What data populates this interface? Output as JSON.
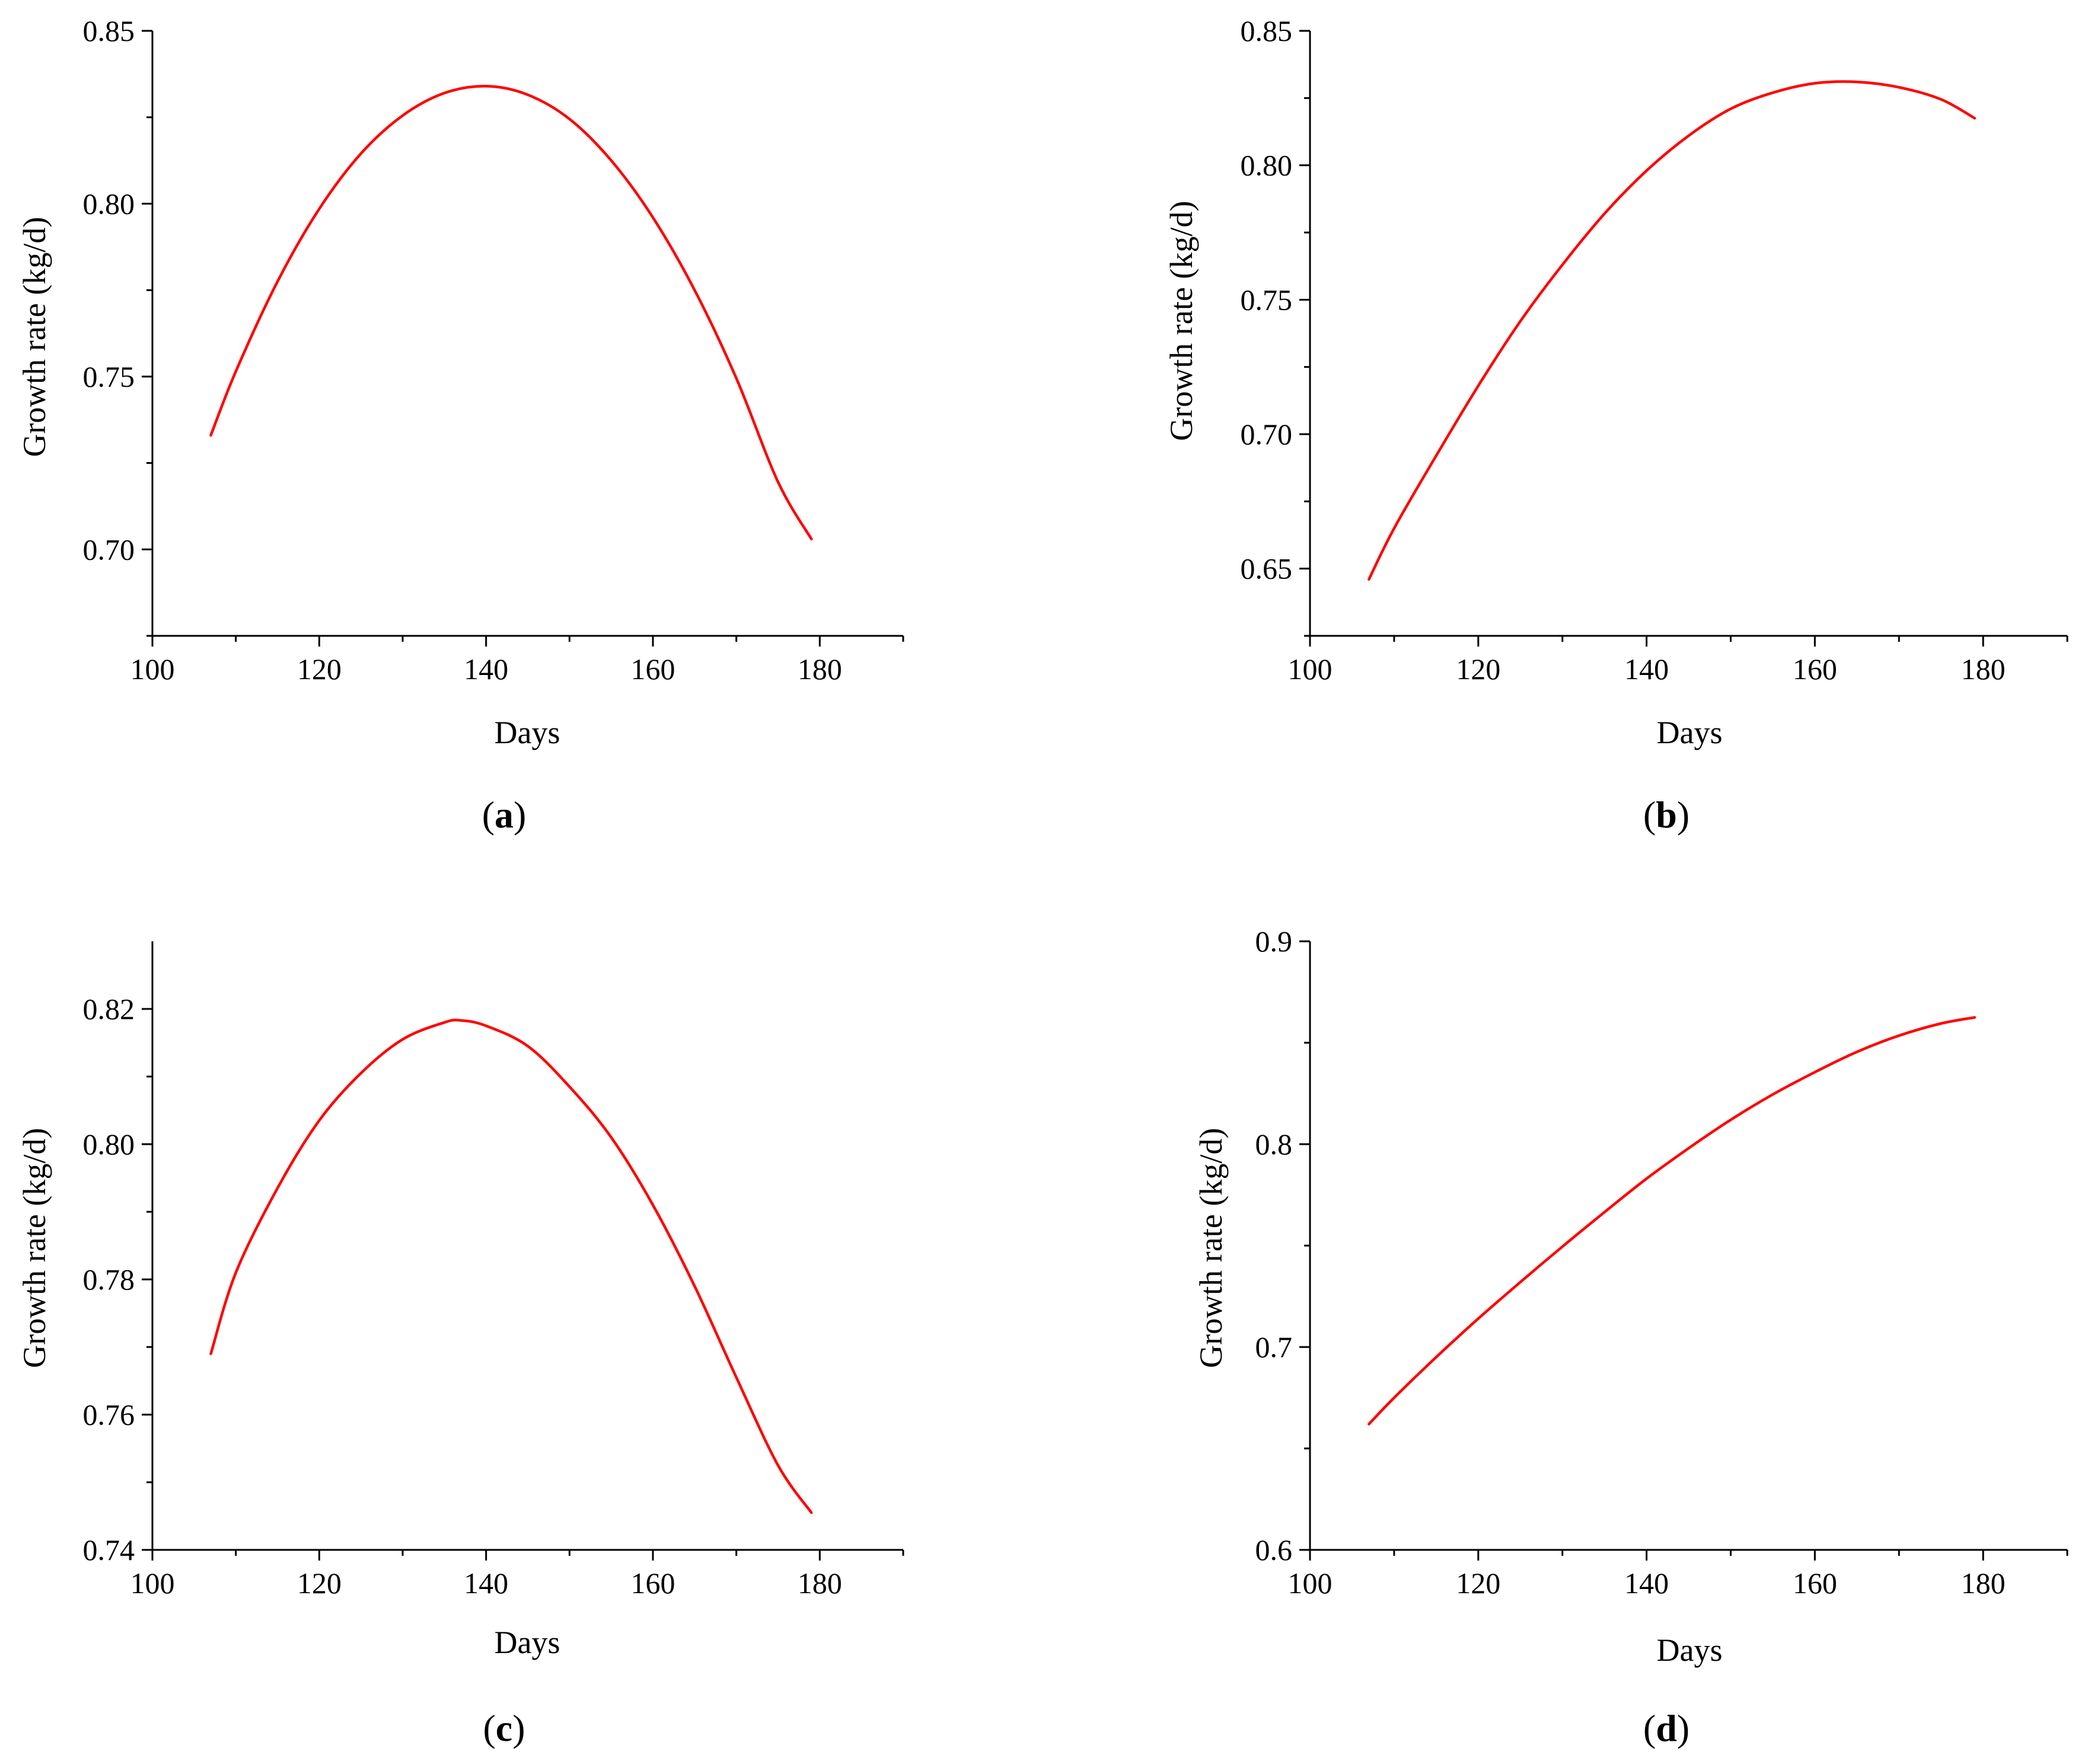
{
  "figure": {
    "line_color": "#ff0000"
  },
  "chart_data": [
    {
      "panel_label": "a",
      "type": "line",
      "xlabel": "Days",
      "ylabel": "Growth rate (kg/d)",
      "xlim": [
        100,
        190
      ],
      "ylim": [
        0.675,
        0.85
      ],
      "xticks": [
        100,
        120,
        140,
        160,
        180
      ],
      "xtick_labels": [
        "100",
        "120",
        "140",
        "160",
        "180"
      ],
      "yticks": [
        0.7,
        0.75,
        0.8,
        0.85
      ],
      "ytick_labels": [
        "0.70",
        "0.75",
        "0.80",
        "0.85"
      ],
      "grid": false,
      "series": [
        {
          "color": "#ff0000",
          "x": [
            107,
            110,
            115,
            120,
            125,
            130,
            135,
            140,
            145,
            150,
            155,
            160,
            165,
            170,
            175,
            179
          ],
          "y": [
            0.733,
            0.7515,
            0.7775,
            0.7985,
            0.8145,
            0.8255,
            0.832,
            0.834,
            0.8315,
            0.8245,
            0.8125,
            0.796,
            0.775,
            0.7495,
            0.7195,
            0.703
          ]
        }
      ]
    },
    {
      "panel_label": "b",
      "type": "line",
      "xlabel": "Days",
      "ylabel": "Growth rate (kg/d)",
      "xlim": [
        100,
        190
      ],
      "ylim": [
        0.625,
        0.85
      ],
      "xticks": [
        100,
        120,
        140,
        160,
        180
      ],
      "xtick_labels": [
        "100",
        "120",
        "140",
        "160",
        "180"
      ],
      "yticks": [
        0.65,
        0.7,
        0.75,
        0.8,
        0.85
      ],
      "ytick_labels": [
        "0.65",
        "0.70",
        "0.75",
        "0.80",
        "0.85"
      ],
      "grid": false,
      "series": [
        {
          "color": "#ff0000",
          "x": [
            107,
            110,
            115,
            120,
            125,
            130,
            135,
            140,
            145,
            150,
            155,
            160,
            165,
            170,
            175,
            179
          ],
          "y": [
            0.646,
            0.665,
            0.692,
            0.718,
            0.742,
            0.763,
            0.782,
            0.798,
            0.811,
            0.821,
            0.827,
            0.8305,
            0.831,
            0.829,
            0.8245,
            0.8175
          ]
        }
      ]
    },
    {
      "panel_label": "c",
      "type": "line",
      "xlabel": "Days",
      "ylabel": "Growth rate (kg/d)",
      "xlim": [
        100,
        190
      ],
      "ylim": [
        0.74,
        0.83
      ],
      "xticks": [
        100,
        120,
        140,
        160,
        180
      ],
      "xtick_labels": [
        "100",
        "120",
        "140",
        "160",
        "180"
      ],
      "yticks": [
        0.74,
        0.76,
        0.78,
        0.8,
        0.82
      ],
      "ytick_labels": [
        "0.74",
        "0.76",
        "0.78",
        "0.80",
        "0.82"
      ],
      "grid": false,
      "series": [
        {
          "color": "#ff0000",
          "x": [
            107,
            110,
            115,
            120,
            125,
            130,
            135,
            137,
            140,
            145,
            150,
            155,
            160,
            165,
            170,
            175,
            179
          ],
          "y": [
            0.769,
            0.781,
            0.7935,
            0.8035,
            0.8105,
            0.8155,
            0.818,
            0.8183,
            0.8175,
            0.8145,
            0.8085,
            0.801,
            0.791,
            0.779,
            0.7655,
            0.7525,
            0.7455
          ]
        }
      ]
    },
    {
      "panel_label": "d",
      "type": "line",
      "xlabel": "Days",
      "ylabel": "Growth rate (kg/d)",
      "xlim": [
        100,
        190
      ],
      "ylim": [
        0.6,
        0.9
      ],
      "xticks": [
        100,
        120,
        140,
        160,
        180
      ],
      "xtick_labels": [
        "100",
        "120",
        "140",
        "160",
        "180"
      ],
      "yticks": [
        0.6,
        0.7,
        0.8,
        0.9
      ],
      "ytick_labels": [
        "0.6",
        "0.7",
        "0.8",
        "0.9"
      ],
      "grid": false,
      "series": [
        {
          "color": "#ff0000",
          "x": [
            107,
            110,
            115,
            120,
            125,
            130,
            135,
            140,
            145,
            150,
            155,
            160,
            165,
            170,
            175,
            179
          ],
          "y": [
            0.662,
            0.675,
            0.695,
            0.714,
            0.732,
            0.7495,
            0.7665,
            0.783,
            0.798,
            0.812,
            0.8245,
            0.8355,
            0.8455,
            0.8535,
            0.8595,
            0.8625
          ]
        }
      ]
    }
  ]
}
